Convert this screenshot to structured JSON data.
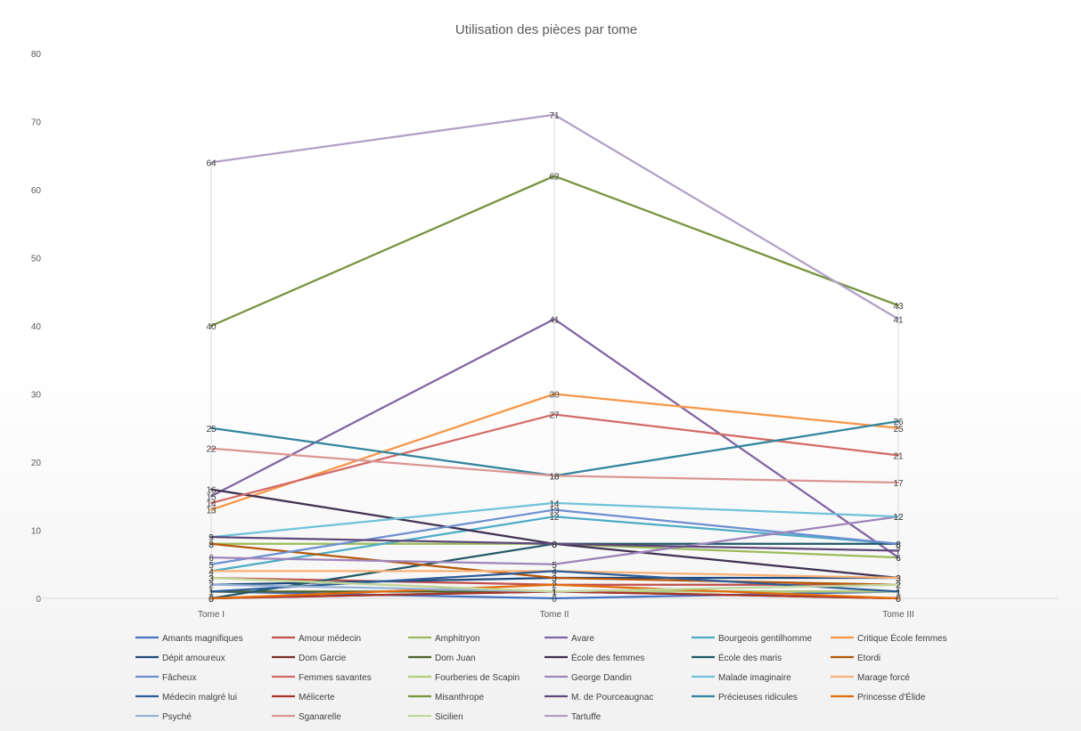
{
  "chart_data": {
    "type": "line",
    "title": "Utilisation des pièces par tome",
    "xlabel": "",
    "ylabel": "",
    "categories": [
      "Tome I",
      "Tome II",
      "Tome III"
    ],
    "ylim": [
      0,
      80
    ],
    "yticks": [
      0,
      10,
      20,
      30,
      40,
      50,
      60,
      70,
      80
    ],
    "grid": false,
    "data_labels": true,
    "legend_position": "bottom",
    "series": [
      {
        "name": "Amants magnifiques",
        "color": "#4472C4",
        "values": [
          1,
          0,
          1
        ]
      },
      {
        "name": "Amour médecin",
        "color": "#C0504D",
        "values": [
          3,
          2,
          2
        ]
      },
      {
        "name": "Amphitryon",
        "color": "#9BBB59",
        "values": [
          8,
          8,
          6
        ]
      },
      {
        "name": "Avare",
        "color": "#8064A2",
        "values": [
          15,
          41,
          6
        ]
      },
      {
        "name": "Bourgeois gentilhomme",
        "color": "#4BACC6",
        "values": [
          4,
          12,
          8
        ]
      },
      {
        "name": "Critique École femmes",
        "color": "#F79646",
        "values": [
          13,
          30,
          25
        ]
      },
      {
        "name": "Dépit amoureux",
        "color": "#1F497D",
        "values": [
          2,
          3,
          3
        ]
      },
      {
        "name": "Dom Garcie",
        "color": "#7B2C24",
        "values": [
          0,
          1,
          0
        ]
      },
      {
        "name": "Dom Juan",
        "color": "#4F6228",
        "values": [
          1,
          1,
          1
        ]
      },
      {
        "name": "École des femmes",
        "color": "#3F3151",
        "values": [
          16,
          8,
          3
        ]
      },
      {
        "name": "École des maris",
        "color": "#215968",
        "values": [
          0,
          8,
          8
        ]
      },
      {
        "name": "Etordi",
        "color": "#B65708",
        "values": [
          8,
          3,
          2
        ]
      },
      {
        "name": "Fâcheux",
        "color": "#6D8FD1",
        "values": [
          5,
          13,
          8
        ]
      },
      {
        "name": "Femmes savantes",
        "color": "#D36B67",
        "values": [
          14,
          27,
          21
        ]
      },
      {
        "name": "Fourberies de Scapin",
        "color": "#B3CB77",
        "values": [
          3,
          1,
          1
        ]
      },
      {
        "name": "George Dandin",
        "color": "#9E85BA",
        "values": [
          6,
          5,
          12
        ]
      },
      {
        "name": "Malade imaginaire",
        "color": "#6FC2D8",
        "values": [
          9,
          14,
          12
        ]
      },
      {
        "name": "Marage forcé",
        "color": "#F9B074",
        "values": [
          4,
          4,
          3
        ]
      },
      {
        "name": "Médecin malgré lui",
        "color": "#2E5D99",
        "values": [
          1,
          4,
          1
        ]
      },
      {
        "name": "Mélicerte",
        "color": "#A8352D",
        "values": [
          0,
          1,
          0
        ]
      },
      {
        "name": "Misanthrope",
        "color": "#76923C",
        "values": [
          40,
          62,
          43
        ]
      },
      {
        "name": "M. de Pourceaugnac",
        "color": "#5F497A",
        "values": [
          9,
          8,
          7
        ]
      },
      {
        "name": "Précieuses ridicules",
        "color": "#31859C",
        "values": [
          25,
          18,
          26
        ]
      },
      {
        "name": "Princesse d'Élide",
        "color": "#E46C0A",
        "values": [
          0,
          2,
          0
        ]
      },
      {
        "name": "Psyché",
        "color": "#95B3D7",
        "values": [
          2,
          1,
          2
        ]
      },
      {
        "name": "Sganarelle",
        "color": "#DA9694",
        "values": [
          22,
          18,
          17
        ]
      },
      {
        "name": "Sicilien",
        "color": "#C4D79B",
        "values": [
          3,
          1,
          2
        ]
      },
      {
        "name": "Tartuffe",
        "color": "#B1A0C7",
        "values": [
          64,
          71,
          41
        ]
      }
    ]
  }
}
